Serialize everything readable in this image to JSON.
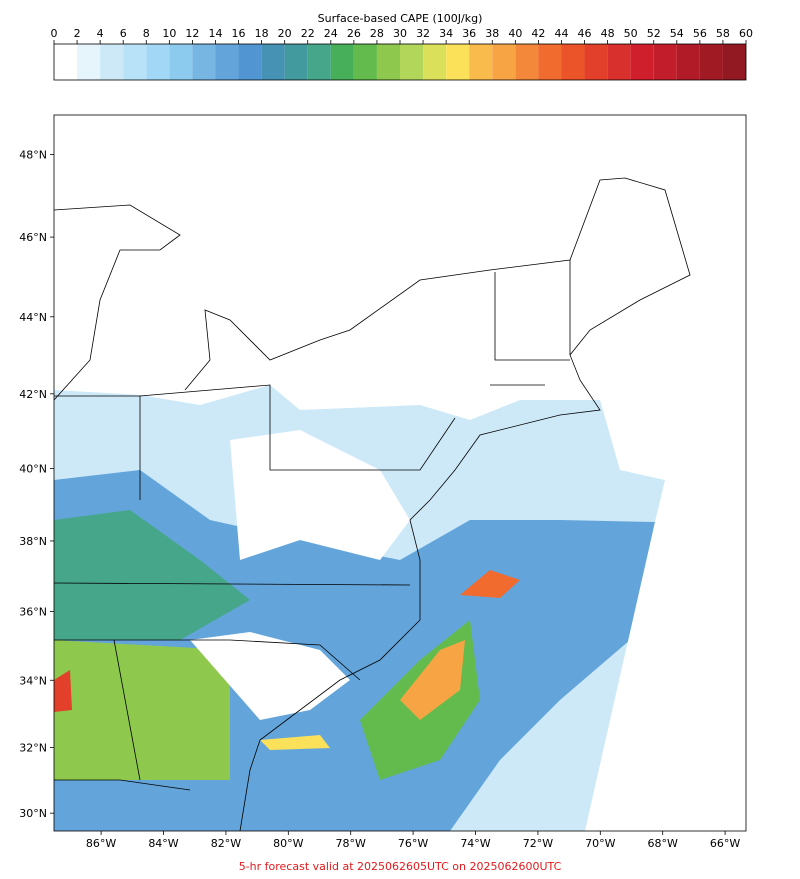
{
  "colorbar": {
    "label": "Surface-based CAPE (100J/kg)",
    "ticks": [
      0,
      2,
      4,
      6,
      8,
      10,
      12,
      14,
      16,
      18,
      20,
      22,
      24,
      26,
      28,
      30,
      32,
      34,
      36,
      38,
      40,
      42,
      44,
      46,
      48,
      50,
      52,
      54,
      56,
      58,
      60
    ],
    "colors": [
      "#ffffff",
      "#e6f4fb",
      "#cde9f8",
      "#b8e2f7",
      "#a2d8f5",
      "#8ccaee",
      "#77b6e2",
      "#63a5da",
      "#5196d3",
      "#4692b4",
      "#42999e",
      "#45a68a",
      "#47ae5a",
      "#62bb4c",
      "#8ec94e",
      "#b2d65a",
      "#dbe05a",
      "#fbe15a",
      "#f9bb4c",
      "#f7a544",
      "#f4883a",
      "#f16a2e",
      "#eb5428",
      "#e2402a",
      "#d8302c",
      "#d01f2c",
      "#c11d2a",
      "#b11b28",
      "#a01a24",
      "#921822"
    ]
  },
  "map": {
    "xlim": [
      -87.51,
      -65.33
    ],
    "ylim": [
      29.45,
      48.93
    ],
    "xticks": [
      {
        "value": -86,
        "label": "86°W"
      },
      {
        "value": -84,
        "label": "84°W"
      },
      {
        "value": -82,
        "label": "82°W"
      },
      {
        "value": -80,
        "label": "80°W"
      },
      {
        "value": -78,
        "label": "78°W"
      },
      {
        "value": -76,
        "label": "76°W"
      },
      {
        "value": -74,
        "label": "74°W"
      },
      {
        "value": -72,
        "label": "72°W"
      },
      {
        "value": -70,
        "label": "70°W"
      },
      {
        "value": -68,
        "label": "68°W"
      },
      {
        "value": -66,
        "label": "66°W"
      }
    ],
    "yticks": [
      {
        "value": 30,
        "label": "30°N"
      },
      {
        "value": 32,
        "label": "32°N"
      },
      {
        "value": 34,
        "label": "34°N"
      },
      {
        "value": 36,
        "label": "36°N"
      },
      {
        "value": 38,
        "label": "38°N"
      },
      {
        "value": 40,
        "label": "40°N"
      },
      {
        "value": 42,
        "label": "42°N"
      },
      {
        "value": 44,
        "label": "44°N"
      },
      {
        "value": 46,
        "label": "46°N"
      },
      {
        "value": 48,
        "label": "48°N"
      }
    ]
  },
  "footer": "5-hr forecast valid at 2025062605UTC on 2025062600UTC"
}
